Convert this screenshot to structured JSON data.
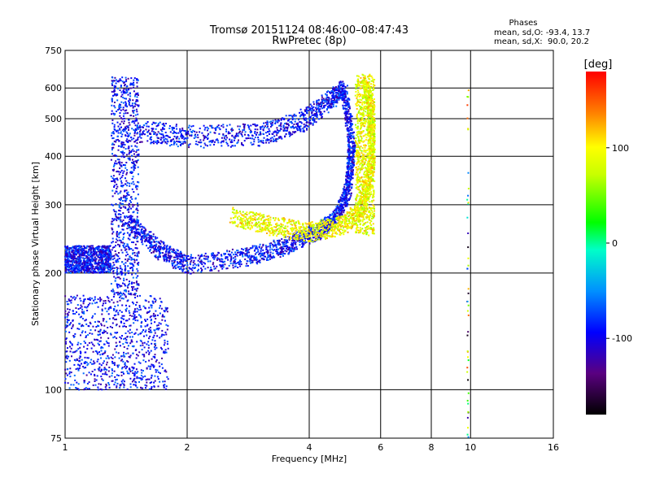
{
  "chart_data": {
    "type": "scatter",
    "title": "Tromsø 20151124 08:46:00–08:47:43",
    "subtitle": "RwPretec (8p)",
    "xlabel": "Frequency [MHz]",
    "ylabel": "Stationary phase Virtual Height [km]",
    "xscale": "log",
    "yscale": "log",
    "xlim": [
      1,
      16
    ],
    "ylim": [
      75,
      750
    ],
    "xticks": [
      {
        "value": 1,
        "label": "1"
      },
      {
        "value": 2,
        "label": "2"
      },
      {
        "value": 4,
        "label": "4"
      },
      {
        "value": 6,
        "label": "6"
      },
      {
        "value": 8,
        "label": "8"
      },
      {
        "value": 10,
        "label": "10"
      },
      {
        "value": 16,
        "label": "16"
      }
    ],
    "yticks": [
      {
        "value": 75,
        "label": "75"
      },
      {
        "value": 100,
        "label": "100"
      },
      {
        "value": 200,
        "label": "200"
      },
      {
        "value": 300,
        "label": "300"
      },
      {
        "value": 400,
        "label": "400"
      },
      {
        "value": 500,
        "label": "500"
      },
      {
        "value": 600,
        "label": "600"
      },
      {
        "value": 750,
        "label": "750"
      }
    ],
    "grid": true,
    "phases_box": {
      "title": "Phases",
      "line1": "mean, sd,O: -93.4, 13.7",
      "line2": "mean, sd,X:  90.0, 20.2"
    },
    "colorbar": {
      "label": "[deg]",
      "range": [
        -180,
        180
      ],
      "ticks": [
        {
          "value": 100,
          "label": "100"
        },
        {
          "value": 0,
          "label": "0"
        },
        {
          "value": -100,
          "label": "-100"
        }
      ]
    },
    "traces": [
      {
        "mode": "O",
        "phase": -93,
        "f_min": 1.3,
        "f_max": 1.52,
        "h_min": 175,
        "h_max": 640,
        "shape": "fill"
      },
      {
        "mode": "O",
        "phase": -93,
        "f_min": 1.0,
        "f_max": 1.3,
        "h_min": 200,
        "h_max": 235,
        "shape": "fill"
      },
      {
        "mode": "O",
        "phase": -93,
        "f_min": 1.0,
        "f_max": 1.8,
        "h_min": 100,
        "h_max": 175,
        "shape": "fill"
      },
      {
        "mode": "O",
        "phase": -93,
        "points": [
          [
            1.45,
            270
          ],
          [
            1.7,
            230
          ],
          [
            2.0,
            210
          ],
          [
            2.8,
            220
          ],
          [
            3.5,
            235
          ],
          [
            4.2,
            255
          ],
          [
            4.7,
            280
          ],
          [
            5.0,
            330
          ],
          [
            5.1,
            420
          ],
          [
            4.9,
            580
          ]
        ],
        "spread": 12,
        "shape": "curve"
      },
      {
        "mode": "O",
        "phase": -93,
        "points": [
          [
            1.5,
            465
          ],
          [
            2.0,
            450
          ],
          [
            3.0,
            455
          ],
          [
            3.8,
            490
          ],
          [
            4.5,
            560
          ],
          [
            4.9,
            600
          ]
        ],
        "spread": 30,
        "shape": "curve"
      },
      {
        "mode": "X",
        "phase": 92,
        "points": [
          [
            2.6,
            280
          ],
          [
            3.2,
            265
          ],
          [
            4.0,
            255
          ],
          [
            4.8,
            265
          ],
          [
            5.4,
            290
          ],
          [
            5.7,
            380
          ],
          [
            5.7,
            500
          ],
          [
            5.5,
            630
          ]
        ],
        "spread": 15,
        "shape": "curve"
      },
      {
        "mode": "X",
        "phase": 90,
        "f_min": 5.2,
        "f_max": 5.8,
        "h_min": 250,
        "h_max": 650,
        "shape": "fill"
      },
      {
        "mode": "noise",
        "phase": -93,
        "f": 9.85,
        "h_min": 75,
        "h_max": 650,
        "shape": "column"
      }
    ]
  }
}
